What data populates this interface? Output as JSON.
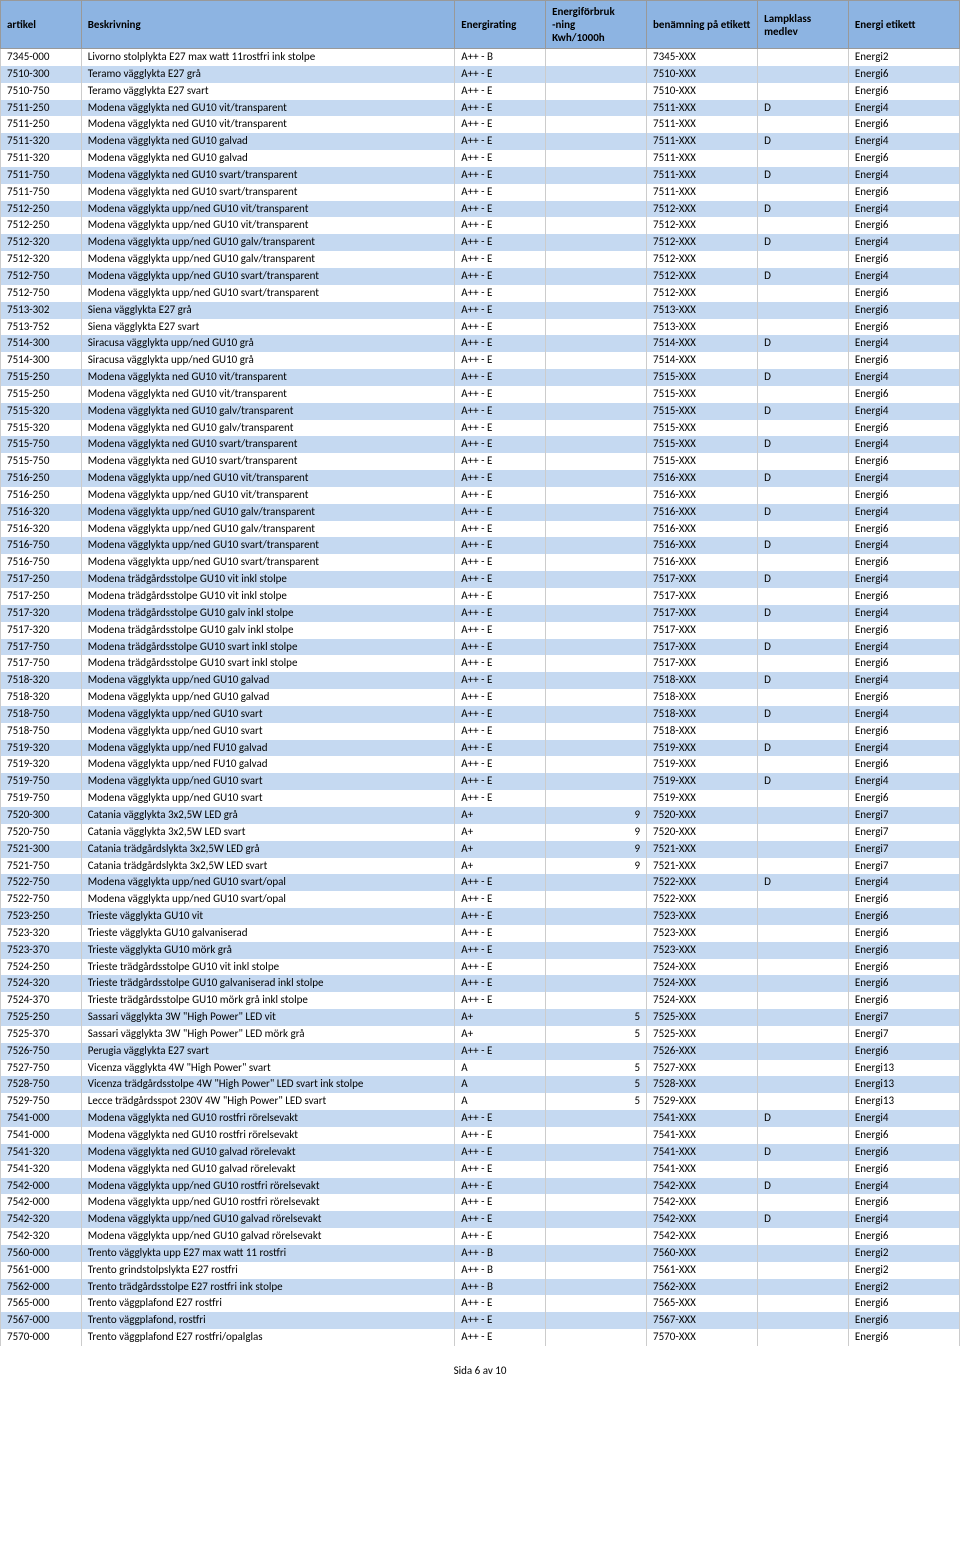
{
  "headers": {
    "artikel": "artikel",
    "beskrivning": "Beskrivning",
    "energirating": "Energirating",
    "forbruk": "Energiförbruk\n-ning\nKwh/1000h",
    "benamning": "benämning på etikett",
    "lampklass": "Lampklass medlev",
    "etikett": "Energi etikett"
  },
  "footer": "Sida 6 av 10",
  "rows": [
    {
      "artikel": "7345-000",
      "besk": "Livorno stolplykta E27 max watt 11rostfri ink stolpe",
      "rating": "A++ - B",
      "forbruk": "",
      "benamn": "7345-XXX",
      "lamp": "",
      "etikett": "Energi2"
    },
    {
      "artikel": "7510-300",
      "besk": "Teramo vägglykta E27 grå",
      "rating": "A++ - E",
      "forbruk": "",
      "benamn": "7510-XXX",
      "lamp": "",
      "etikett": "Energi6"
    },
    {
      "artikel": "7510-750",
      "besk": "Teramo vägglykta E27 svart",
      "rating": "A++ - E",
      "forbruk": "",
      "benamn": "7510-XXX",
      "lamp": "",
      "etikett": "Energi6"
    },
    {
      "artikel": "7511-250",
      "besk": "Modena vägglykta ned GU10 vit/transparent",
      "rating": "A++ - E",
      "forbruk": "",
      "benamn": "7511-XXX",
      "lamp": "D",
      "etikett": "Energi4"
    },
    {
      "artikel": "7511-250",
      "besk": "Modena vägglykta ned GU10 vit/transparent",
      "rating": "A++ - E",
      "forbruk": "",
      "benamn": "7511-XXX",
      "lamp": "",
      "etikett": "Energi6"
    },
    {
      "artikel": "7511-320",
      "besk": "Modena vägglykta ned GU10 galvad",
      "rating": "A++ - E",
      "forbruk": "",
      "benamn": "7511-XXX",
      "lamp": "D",
      "etikett": "Energi4"
    },
    {
      "artikel": "7511-320",
      "besk": "Modena vägglykta ned GU10 galvad",
      "rating": "A++ - E",
      "forbruk": "",
      "benamn": "7511-XXX",
      "lamp": "",
      "etikett": "Energi6"
    },
    {
      "artikel": "7511-750",
      "besk": "Modena vägglykta ned GU10 svart/transparent",
      "rating": "A++ - E",
      "forbruk": "",
      "benamn": "7511-XXX",
      "lamp": "D",
      "etikett": "Energi4"
    },
    {
      "artikel": "7511-750",
      "besk": "Modena vägglykta ned GU10 svart/transparent",
      "rating": "A++ - E",
      "forbruk": "",
      "benamn": "7511-XXX",
      "lamp": "",
      "etikett": "Energi6"
    },
    {
      "artikel": "7512-250",
      "besk": "Modena vägglykta upp/ned GU10 vit/transparent",
      "rating": "A++ - E",
      "forbruk": "",
      "benamn": "7512-XXX",
      "lamp": "D",
      "etikett": "Energi4"
    },
    {
      "artikel": "7512-250",
      "besk": "Modena vägglykta upp/ned GU10 vit/transparent",
      "rating": "A++ - E",
      "forbruk": "",
      "benamn": "7512-XXX",
      "lamp": "",
      "etikett": "Energi6"
    },
    {
      "artikel": "7512-320",
      "besk": "Modena vägglykta upp/ned GU10 galv/transparent",
      "rating": "A++ - E",
      "forbruk": "",
      "benamn": "7512-XXX",
      "lamp": "D",
      "etikett": "Energi4"
    },
    {
      "artikel": "7512-320",
      "besk": "Modena vägglykta upp/ned GU10 galv/transparent",
      "rating": "A++ - E",
      "forbruk": "",
      "benamn": "7512-XXX",
      "lamp": "",
      "etikett": "Energi6"
    },
    {
      "artikel": "7512-750",
      "besk": "Modena vägglykta upp/ned GU10 svart/transparent",
      "rating": "A++ - E",
      "forbruk": "",
      "benamn": "7512-XXX",
      "lamp": "D",
      "etikett": "Energi4"
    },
    {
      "artikel": "7512-750",
      "besk": "Modena vägglykta upp/ned GU10 svart/transparent",
      "rating": "A++ - E",
      "forbruk": "",
      "benamn": "7512-XXX",
      "lamp": "",
      "etikett": "Energi6"
    },
    {
      "artikel": "7513-302",
      "besk": "Siena vägglykta E27 grå",
      "rating": "A++ - E",
      "forbruk": "",
      "benamn": "7513-XXX",
      "lamp": "",
      "etikett": "Energi6"
    },
    {
      "artikel": "7513-752",
      "besk": "Siena vägglykta E27 svart",
      "rating": "A++ - E",
      "forbruk": "",
      "benamn": "7513-XXX",
      "lamp": "",
      "etikett": "Energi6"
    },
    {
      "artikel": "7514-300",
      "besk": "Siracusa vägglykta upp/ned GU10 grå",
      "rating": "A++ - E",
      "forbruk": "",
      "benamn": "7514-XXX",
      "lamp": "D",
      "etikett": "Energi4"
    },
    {
      "artikel": "7514-300",
      "besk": "Siracusa vägglykta upp/ned GU10 grå",
      "rating": "A++ - E",
      "forbruk": "",
      "benamn": "7514-XXX",
      "lamp": "",
      "etikett": "Energi6"
    },
    {
      "artikel": "7515-250",
      "besk": "Modena vägglykta ned GU10 vit/transparent",
      "rating": "A++ - E",
      "forbruk": "",
      "benamn": "7515-XXX",
      "lamp": "D",
      "etikett": "Energi4"
    },
    {
      "artikel": "7515-250",
      "besk": "Modena vägglykta ned GU10 vit/transparent",
      "rating": "A++ - E",
      "forbruk": "",
      "benamn": "7515-XXX",
      "lamp": "",
      "etikett": "Energi6"
    },
    {
      "artikel": "7515-320",
      "besk": "Modena vägglykta ned GU10 galv/transparent",
      "rating": "A++ - E",
      "forbruk": "",
      "benamn": "7515-XXX",
      "lamp": "D",
      "etikett": "Energi4"
    },
    {
      "artikel": "7515-320",
      "besk": "Modena vägglykta ned GU10 galv/transparent",
      "rating": "A++ - E",
      "forbruk": "",
      "benamn": "7515-XXX",
      "lamp": "",
      "etikett": "Energi6"
    },
    {
      "artikel": "7515-750",
      "besk": "Modena vägglykta ned GU10 svart/transparent",
      "rating": "A++ - E",
      "forbruk": "",
      "benamn": "7515-XXX",
      "lamp": "D",
      "etikett": "Energi4"
    },
    {
      "artikel": "7515-750",
      "besk": "Modena vägglykta ned GU10 svart/transparent",
      "rating": "A++ - E",
      "forbruk": "",
      "benamn": "7515-XXX",
      "lamp": "",
      "etikett": "Energi6"
    },
    {
      "artikel": "7516-250",
      "besk": "Modena vägglykta upp/ned GU10 vit/transparent",
      "rating": "A++ - E",
      "forbruk": "",
      "benamn": "7516-XXX",
      "lamp": "D",
      "etikett": "Energi4"
    },
    {
      "artikel": "7516-250",
      "besk": "Modena vägglykta upp/ned GU10 vit/transparent",
      "rating": "A++ - E",
      "forbruk": "",
      "benamn": "7516-XXX",
      "lamp": "",
      "etikett": "Energi6"
    },
    {
      "artikel": "7516-320",
      "besk": "Modena vägglykta upp/ned GU10 galv/transparent",
      "rating": "A++ - E",
      "forbruk": "",
      "benamn": "7516-XXX",
      "lamp": "D",
      "etikett": "Energi4"
    },
    {
      "artikel": "7516-320",
      "besk": "Modena vägglykta upp/ned GU10 galv/transparent",
      "rating": "A++ - E",
      "forbruk": "",
      "benamn": "7516-XXX",
      "lamp": "",
      "etikett": "Energi6"
    },
    {
      "artikel": "7516-750",
      "besk": "Modena vägglykta upp/ned GU10 svart/transparent",
      "rating": "A++ - E",
      "forbruk": "",
      "benamn": "7516-XXX",
      "lamp": "D",
      "etikett": "Energi4"
    },
    {
      "artikel": "7516-750",
      "besk": "Modena vägglykta upp/ned GU10 svart/transparent",
      "rating": "A++ - E",
      "forbruk": "",
      "benamn": "7516-XXX",
      "lamp": "",
      "etikett": "Energi6"
    },
    {
      "artikel": "7517-250",
      "besk": "Modena trädgårdsstolpe GU10 vit inkl stolpe",
      "rating": "A++ - E",
      "forbruk": "",
      "benamn": "7517-XXX",
      "lamp": "D",
      "etikett": "Energi4"
    },
    {
      "artikel": "7517-250",
      "besk": "Modena trädgårdsstolpe GU10 vit inkl stolpe",
      "rating": "A++ - E",
      "forbruk": "",
      "benamn": "7517-XXX",
      "lamp": "",
      "etikett": "Energi6"
    },
    {
      "artikel": "7517-320",
      "besk": "Modena trädgårdsstolpe GU10 galv inkl stolpe",
      "rating": "A++ - E",
      "forbruk": "",
      "benamn": "7517-XXX",
      "lamp": "D",
      "etikett": "Energi4"
    },
    {
      "artikel": "7517-320",
      "besk": "Modena trädgårdsstolpe GU10 galv inkl stolpe",
      "rating": "A++ - E",
      "forbruk": "",
      "benamn": "7517-XXX",
      "lamp": "",
      "etikett": "Energi6"
    },
    {
      "artikel": "7517-750",
      "besk": "Modena trädgårdsstolpe GU10 svart inkl stolpe",
      "rating": "A++ - E",
      "forbruk": "",
      "benamn": "7517-XXX",
      "lamp": "D",
      "etikett": "Energi4"
    },
    {
      "artikel": "7517-750",
      "besk": "Modena trädgårdsstolpe GU10 svart inkl stolpe",
      "rating": "A++ - E",
      "forbruk": "",
      "benamn": "7517-XXX",
      "lamp": "",
      "etikett": "Energi6"
    },
    {
      "artikel": "7518-320",
      "besk": "Modena vägglykta upp/ned GU10 galvad",
      "rating": "A++ - E",
      "forbruk": "",
      "benamn": "7518-XXX",
      "lamp": "D",
      "etikett": "Energi4"
    },
    {
      "artikel": "7518-320",
      "besk": "Modena vägglykta upp/ned GU10 galvad",
      "rating": "A++ - E",
      "forbruk": "",
      "benamn": "7518-XXX",
      "lamp": "",
      "etikett": "Energi6"
    },
    {
      "artikel": "7518-750",
      "besk": "Modena vägglykta upp/ned GU10 svart",
      "rating": "A++ - E",
      "forbruk": "",
      "benamn": "7518-XXX",
      "lamp": "D",
      "etikett": "Energi4"
    },
    {
      "artikel": "7518-750",
      "besk": "Modena vägglykta upp/ned GU10 svart",
      "rating": "A++ - E",
      "forbruk": "",
      "benamn": "7518-XXX",
      "lamp": "",
      "etikett": "Energi6"
    },
    {
      "artikel": "7519-320",
      "besk": "Modena vägglykta upp/ned FU10 galvad",
      "rating": "A++ - E",
      "forbruk": "",
      "benamn": "7519-XXX",
      "lamp": "D",
      "etikett": "Energi4"
    },
    {
      "artikel": "7519-320",
      "besk": "Modena vägglykta upp/ned FU10 galvad",
      "rating": "A++ - E",
      "forbruk": "",
      "benamn": "7519-XXX",
      "lamp": "",
      "etikett": "Energi6"
    },
    {
      "artikel": "7519-750",
      "besk": "Modena vägglykta upp/ned GU10 svart",
      "rating": "A++ - E",
      "forbruk": "",
      "benamn": "7519-XXX",
      "lamp": "D",
      "etikett": "Energi4"
    },
    {
      "artikel": "7519-750",
      "besk": "Modena vägglykta upp/ned GU10 svart",
      "rating": "A++ - E",
      "forbruk": "",
      "benamn": "7519-XXX",
      "lamp": "",
      "etikett": "Energi6"
    },
    {
      "artikel": "7520-300",
      "besk": "Catania vägglykta 3x2,5W LED grå",
      "rating": "A+",
      "forbruk": "9",
      "benamn": "7520-XXX",
      "lamp": "",
      "etikett": "Energi7"
    },
    {
      "artikel": "7520-750",
      "besk": "Catania vägglykta 3x2,5W LED svart",
      "rating": "A+",
      "forbruk": "9",
      "benamn": "7520-XXX",
      "lamp": "",
      "etikett": "Energi7"
    },
    {
      "artikel": "7521-300",
      "besk": "Catania trädgårdslykta 3x2,5W LED grå",
      "rating": "A+",
      "forbruk": "9",
      "benamn": "7521-XXX",
      "lamp": "",
      "etikett": "Energi7"
    },
    {
      "artikel": "7521-750",
      "besk": "Catania trädgårdslykta 3x2,5W LED svart",
      "rating": "A+",
      "forbruk": "9",
      "benamn": "7521-XXX",
      "lamp": "",
      "etikett": "Energi7"
    },
    {
      "artikel": "7522-750",
      "besk": "Modena vägglykta upp/ned GU10 svart/opal",
      "rating": "A++ - E",
      "forbruk": "",
      "benamn": "7522-XXX",
      "lamp": "D",
      "etikett": "Energi4"
    },
    {
      "artikel": "7522-750",
      "besk": "Modena vägglykta upp/ned GU10 svart/opal",
      "rating": "A++ - E",
      "forbruk": "",
      "benamn": "7522-XXX",
      "lamp": "",
      "etikett": "Energi6"
    },
    {
      "artikel": "7523-250",
      "besk": "Trieste vägglykta GU10 vit",
      "rating": "A++ - E",
      "forbruk": "",
      "benamn": "7523-XXX",
      "lamp": "",
      "etikett": "Energi6"
    },
    {
      "artikel": "7523-320",
      "besk": "Trieste vägglykta GU10 galvaniserad",
      "rating": "A++ - E",
      "forbruk": "",
      "benamn": "7523-XXX",
      "lamp": "",
      "etikett": "Energi6"
    },
    {
      "artikel": "7523-370",
      "besk": "Trieste vägglykta GU10 mörk grå",
      "rating": "A++ - E",
      "forbruk": "",
      "benamn": "7523-XXX",
      "lamp": "",
      "etikett": "Energi6"
    },
    {
      "artikel": "7524-250",
      "besk": "Trieste trädgårdsstolpe GU10 vit inkl stolpe",
      "rating": "A++ - E",
      "forbruk": "",
      "benamn": "7524-XXX",
      "lamp": "",
      "etikett": "Energi6"
    },
    {
      "artikel": "7524-320",
      "besk": "Trieste trädgårdsstolpe GU10 galvaniserad inkl stolpe",
      "rating": "A++ - E",
      "forbruk": "",
      "benamn": "7524-XXX",
      "lamp": "",
      "etikett": "Energi6"
    },
    {
      "artikel": "7524-370",
      "besk": "Trieste trädgårdsstolpe GU10 mörk grå inkl stolpe",
      "rating": "A++ - E",
      "forbruk": "",
      "benamn": "7524-XXX",
      "lamp": "",
      "etikett": "Energi6"
    },
    {
      "artikel": "7525-250",
      "besk": "Sassari vägglykta 3W \"High Power\" LED vit",
      "rating": "A+",
      "forbruk": "5",
      "benamn": "7525-XXX",
      "lamp": "",
      "etikett": "Energi7"
    },
    {
      "artikel": "7525-370",
      "besk": "Sassari vägglykta 3W \"High Power\" LED mörk grå",
      "rating": "A+",
      "forbruk": "5",
      "benamn": "7525-XXX",
      "lamp": "",
      "etikett": "Energi7"
    },
    {
      "artikel": "7526-750",
      "besk": "Perugia vägglykta E27 svart",
      "rating": "A++ - E",
      "forbruk": "",
      "benamn": "7526-XXX",
      "lamp": "",
      "etikett": "Energi6"
    },
    {
      "artikel": "7527-750",
      "besk": "Vicenza vägglykta 4W \"High Power\" svart",
      "rating": "A",
      "forbruk": "5",
      "benamn": "7527-XXX",
      "lamp": "",
      "etikett": "Energi13"
    },
    {
      "artikel": "7528-750",
      "besk": "Vicenza trädgårdsstolpe 4W \"High Power\" LED svart ink stolpe",
      "rating": "A",
      "forbruk": "5",
      "benamn": "7528-XXX",
      "lamp": "",
      "etikett": "Energi13"
    },
    {
      "artikel": "7529-750",
      "besk": "Lecce trädgårdsspot 230V 4W \"High Power\" LED svart",
      "rating": "A",
      "forbruk": "5",
      "benamn": "7529-XXX",
      "lamp": "",
      "etikett": "Energi13"
    },
    {
      "artikel": "7541-000",
      "besk": "Modena vägglykta ned GU10 rostfri rörelsevakt",
      "rating": "A++ - E",
      "forbruk": "",
      "benamn": "7541-XXX",
      "lamp": "D",
      "etikett": "Energi4"
    },
    {
      "artikel": "7541-000",
      "besk": "Modena vägglykta ned GU10 rostfri rörelsevakt",
      "rating": "A++ - E",
      "forbruk": "",
      "benamn": "7541-XXX",
      "lamp": "",
      "etikett": "Energi6"
    },
    {
      "artikel": "7541-320",
      "besk": "Modena vägglykta ned GU10 galvad rörelevakt",
      "rating": "A++ - E",
      "forbruk": "",
      "benamn": "7541-XXX",
      "lamp": "D",
      "etikett": "Energi6"
    },
    {
      "artikel": "7541-320",
      "besk": "Modena vägglykta ned GU10 galvad rörelevakt",
      "rating": "A++ - E",
      "forbruk": "",
      "benamn": "7541-XXX",
      "lamp": "",
      "etikett": "Energi6"
    },
    {
      "artikel": "7542-000",
      "besk": "Modena vägglykta upp/ned GU10 rostfri rörelsevakt",
      "rating": "A++ - E",
      "forbruk": "",
      "benamn": "7542-XXX",
      "lamp": "D",
      "etikett": "Energi4"
    },
    {
      "artikel": "7542-000",
      "besk": "Modena vägglykta upp/ned GU10 rostfri rörelsevakt",
      "rating": "A++ - E",
      "forbruk": "",
      "benamn": "7542-XXX",
      "lamp": "",
      "etikett": "Energi6"
    },
    {
      "artikel": "7542-320",
      "besk": "Modena vägglykta upp/ned GU10 galvad rörelsevakt",
      "rating": "A++ - E",
      "forbruk": "",
      "benamn": "7542-XXX",
      "lamp": "D",
      "etikett": "Energi4"
    },
    {
      "artikel": "7542-320",
      "besk": "Modena vägglykta upp/ned GU10 galvad rörelsevakt",
      "rating": "A++ - E",
      "forbruk": "",
      "benamn": "7542-XXX",
      "lamp": "",
      "etikett": "Energi6"
    },
    {
      "artikel": "7560-000",
      "besk": "Trento vägglykta upp E27 max watt 11 rostfri",
      "rating": "A++ - B",
      "forbruk": "",
      "benamn": "7560-XXX",
      "lamp": "",
      "etikett": "Energi2"
    },
    {
      "artikel": "7561-000",
      "besk": "Trento grindstolpslykta E27 rostfri",
      "rating": "A++ - B",
      "forbruk": "",
      "benamn": "7561-XXX",
      "lamp": "",
      "etikett": "Energi2"
    },
    {
      "artikel": "7562-000",
      "besk": "Trento trädgårdsstolpe E27 rostfri ink stolpe",
      "rating": "A++ - B",
      "forbruk": "",
      "benamn": "7562-XXX",
      "lamp": "",
      "etikett": "Energi2"
    },
    {
      "artikel": "7565-000",
      "besk": "Trento väggplafond E27 rostfri",
      "rating": "A++ - E",
      "forbruk": "",
      "benamn": "7565-XXX",
      "lamp": "",
      "etikett": "Energi6"
    },
    {
      "artikel": "7567-000",
      "besk": "Trento väggplafond, rostfri",
      "rating": "A++ - E",
      "forbruk": "",
      "benamn": "7567-XXX",
      "lamp": "",
      "etikett": "Energi6"
    },
    {
      "artikel": "7570-000",
      "besk": "Trento väggplafond  E27 rostfri/opalglas",
      "rating": "A++ - E",
      "forbruk": "",
      "benamn": "7570-XXX",
      "lamp": "",
      "etikett": "Energi6"
    }
  ]
}
